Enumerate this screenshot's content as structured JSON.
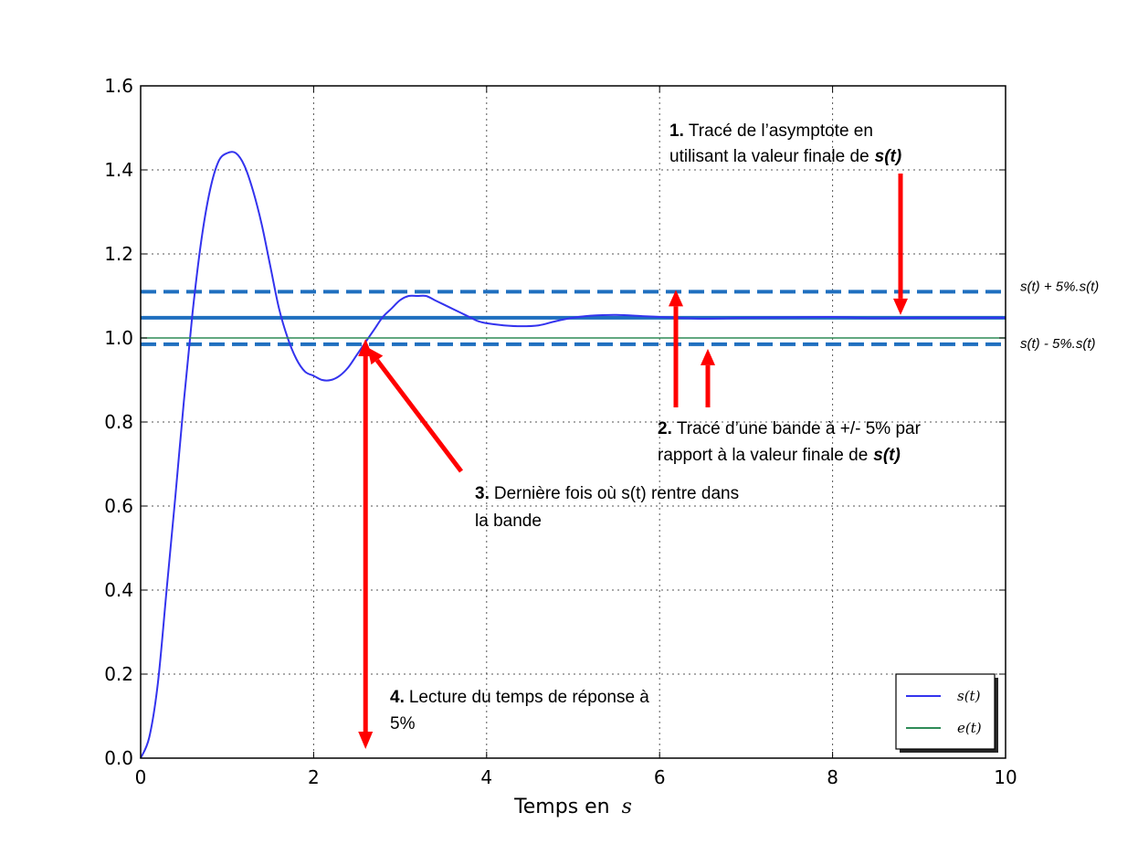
{
  "chart_data": {
    "type": "line",
    "xlabel": "Temps en",
    "xlabel_var": "s",
    "xlim": [
      0,
      10
    ],
    "ylim": [
      0,
      1.6
    ],
    "x_ticks": [
      "0",
      "2",
      "4",
      "6",
      "8",
      "10"
    ],
    "y_ticks": [
      "0.0",
      "0.2",
      "0.4",
      "0.6",
      "0.8",
      "1.0",
      "1.2",
      "1.4",
      "1.6"
    ],
    "grid": true,
    "legend_position": "bottom-right",
    "series": [
      {
        "name": "s(t)",
        "color": "#3333ee",
        "x": [
          0,
          0.1,
          0.2,
          0.3,
          0.4,
          0.5,
          0.6,
          0.7,
          0.8,
          0.9,
          1.0,
          1.1,
          1.2,
          1.3,
          1.4,
          1.5,
          1.6,
          1.7,
          1.8,
          1.9,
          2.0,
          2.1,
          2.2,
          2.3,
          2.4,
          2.5,
          2.6,
          2.7,
          2.8,
          2.9,
          3.0,
          3.1,
          3.2,
          3.3,
          3.4,
          3.5,
          3.6,
          3.7,
          3.8,
          3.9,
          4.0,
          4.2,
          4.4,
          4.6,
          4.8,
          5.0,
          5.2,
          5.5,
          5.8,
          6.0,
          6.5,
          7.0,
          7.5,
          8.0,
          8.5,
          9.0,
          9.5,
          10.0
        ],
        "values": [
          0.0,
          0.05,
          0.18,
          0.4,
          0.62,
          0.85,
          1.06,
          1.23,
          1.35,
          1.42,
          1.44,
          1.44,
          1.41,
          1.35,
          1.27,
          1.17,
          1.07,
          1.0,
          0.95,
          0.92,
          0.91,
          0.9,
          0.9,
          0.91,
          0.93,
          0.96,
          0.99,
          1.02,
          1.05,
          1.07,
          1.09,
          1.1,
          1.1,
          1.1,
          1.09,
          1.08,
          1.07,
          1.06,
          1.05,
          1.04,
          1.035,
          1.03,
          1.028,
          1.03,
          1.04,
          1.048,
          1.053,
          1.055,
          1.052,
          1.05,
          1.046,
          1.048,
          1.049,
          1.05,
          1.047,
          1.048,
          1.048,
          1.048
        ]
      },
      {
        "name": "e(t)",
        "color": "#2e8b57",
        "x": [
          0,
          10
        ],
        "values": [
          1.0,
          1.0
        ]
      }
    ],
    "reference_lines": [
      {
        "y": 1.048,
        "style": "solid",
        "color": "#1f6fbf"
      },
      {
        "y": 1.11,
        "style": "dashed",
        "color": "#1f6fbf"
      },
      {
        "y": 0.985,
        "style": "dashed",
        "color": "#1f6fbf"
      }
    ],
    "band_labels": {
      "upper": "s(t) + 5%.s(t)",
      "lower": "s(t) - 5%.s(t)"
    },
    "annotations": [
      {
        "id": "1",
        "number": "1.",
        "line1": "Tracé de l’asymptote en",
        "line2": "utilisant la valeur finale de",
        "emph": "s(t)"
      },
      {
        "id": "2",
        "number": "2.",
        "line1": "Tracé d’une bande à +/- 5% par",
        "line2": "rapport à la valeur finale de",
        "emph": "s(t)"
      },
      {
        "id": "3",
        "number": "3.",
        "line1": "Dernière fois où s(t) rentre dans",
        "line2": "la bande",
        "emph": ""
      },
      {
        "id": "4",
        "number": "4.",
        "line1": "Lecture du temps de réponse à",
        "line2": "5%",
        "emph": ""
      }
    ],
    "arrow_color": "#ff0000"
  }
}
